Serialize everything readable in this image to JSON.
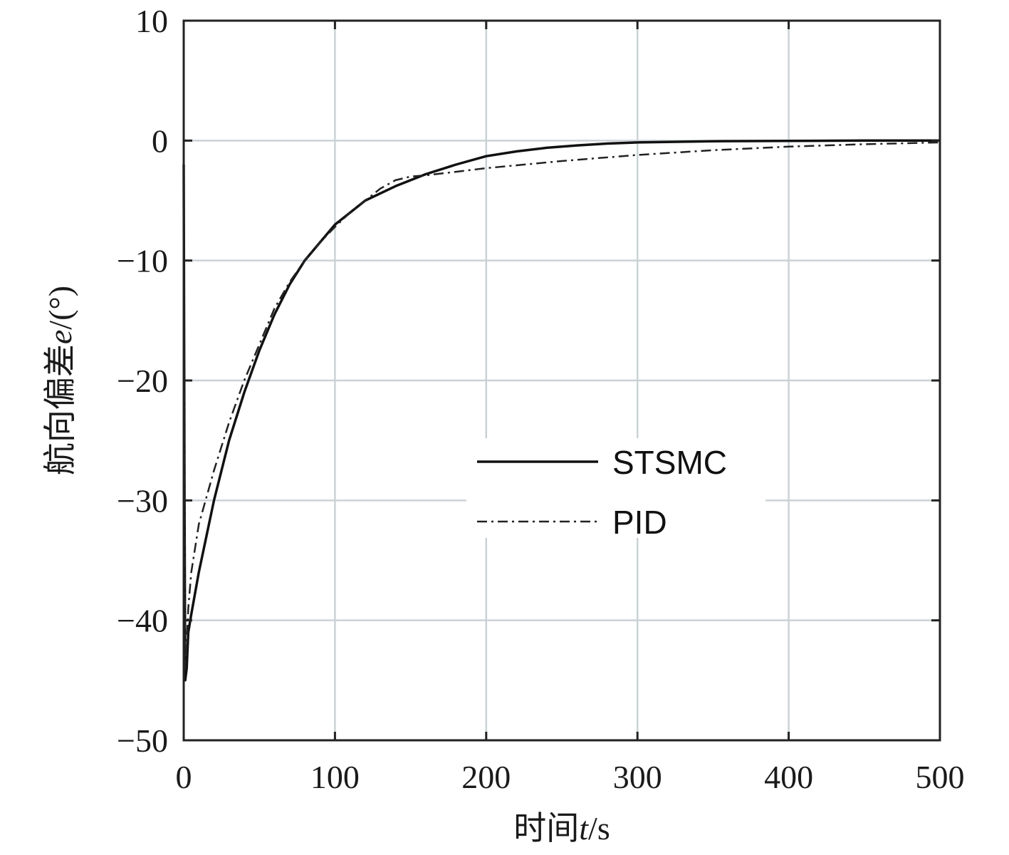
{
  "chart_data": {
    "type": "line",
    "xlabel": "时间t/s",
    "xlabel_prefix": "时间",
    "xlabel_var": "t",
    "xlabel_suffix": "/s",
    "ylabel": "航向偏差e/(°)",
    "ylabel_prefix": "航向偏差",
    "ylabel_var": "e",
    "ylabel_suffix": "/(°)",
    "xlim": [
      0,
      500
    ],
    "ylim": [
      -50,
      10
    ],
    "xticks": [
      0,
      100,
      200,
      300,
      400,
      500
    ],
    "yticks": [
      10,
      0,
      -10,
      -20,
      -30,
      -40,
      -50
    ],
    "xtick_labels": [
      "0",
      "100",
      "200",
      "300",
      "400",
      "500"
    ],
    "ytick_labels": [
      "10",
      "0",
      "−10",
      "−20",
      "−30",
      "−40",
      "−50"
    ],
    "grid": true,
    "legend_position": "center-right",
    "series": [
      {
        "name": "STSMC",
        "style": "solid",
        "color": "#111111",
        "x": [
          0,
          0.5,
          1,
          2,
          3,
          5,
          10,
          20,
          30,
          40,
          50,
          60,
          70,
          80,
          90,
          100,
          120,
          140,
          160,
          180,
          200,
          220,
          240,
          260,
          280,
          300,
          350,
          400,
          450,
          500
        ],
        "y": [
          -2,
          -30,
          -45,
          -44,
          -41,
          -39.5,
          -36,
          -30,
          -25,
          -21,
          -17.5,
          -14.5,
          -12,
          -10,
          -8.5,
          -7,
          -5,
          -3.8,
          -2.8,
          -2,
          -1.3,
          -0.9,
          -0.6,
          -0.4,
          -0.25,
          -0.15,
          -0.05,
          -0.02,
          0,
          0
        ]
      },
      {
        "name": "PID",
        "style": "dash-dot",
        "color": "#222222",
        "x": [
          0,
          0.5,
          1,
          2,
          3,
          5,
          10,
          20,
          30,
          40,
          50,
          60,
          70,
          80,
          90,
          100,
          110,
          120,
          130,
          140,
          150,
          160,
          180,
          200,
          250,
          300,
          350,
          400,
          450,
          500
        ],
        "y": [
          -2,
          -30,
          -44,
          -42,
          -39,
          -36,
          -32,
          -27.5,
          -23.5,
          -20,
          -17,
          -14,
          -11.8,
          -10,
          -8.5,
          -7.2,
          -6,
          -5,
          -4,
          -3.3,
          -3,
          -2.9,
          -2.6,
          -2.3,
          -1.7,
          -1.2,
          -0.8,
          -0.5,
          -0.3,
          -0.15
        ]
      }
    ]
  }
}
